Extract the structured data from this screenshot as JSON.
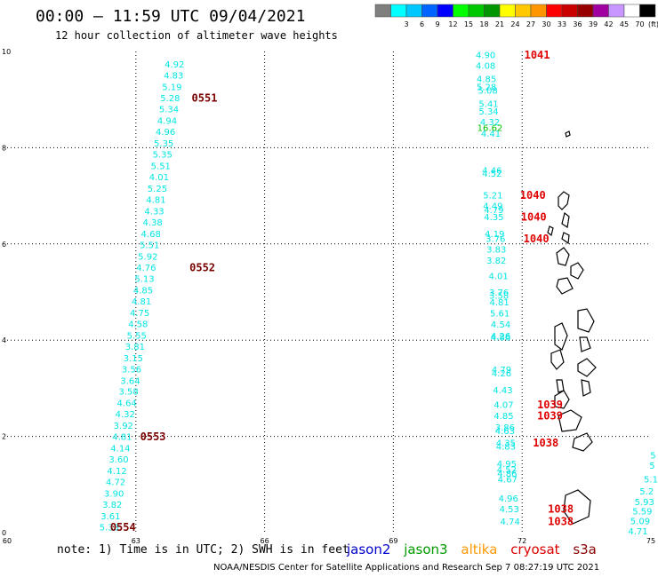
{
  "header": {
    "title": "00:00 – 11:59 UTC 09/04/2021",
    "subtitle": "12 hour collection of altimeter wave heights"
  },
  "legend": {
    "unit_label": "(ft)",
    "bins": [
      {
        "label": "",
        "color": "#7f7f7f"
      },
      {
        "label": "3",
        "color": "#00ffff"
      },
      {
        "label": "6",
        "color": "#00c8ff"
      },
      {
        "label": "9",
        "color": "#0064ff"
      },
      {
        "label": "12",
        "color": "#0000ff"
      },
      {
        "label": "15",
        "color": "#00ff00"
      },
      {
        "label": "18",
        "color": "#00c800"
      },
      {
        "label": "21",
        "color": "#009600"
      },
      {
        "label": "24",
        "color": "#ffff00"
      },
      {
        "label": "27",
        "color": "#ffc800"
      },
      {
        "label": "30",
        "color": "#ff9600"
      },
      {
        "label": "33",
        "color": "#ff0000"
      },
      {
        "label": "36",
        "color": "#c80000"
      },
      {
        "label": "39",
        "color": "#960000"
      },
      {
        "label": "42",
        "color": "#a000a0"
      },
      {
        "label": "45",
        "color": "#c896ff"
      },
      {
        "label": "70",
        "color": "#ffffff"
      },
      {
        "label": "",
        "color": "#000000"
      }
    ]
  },
  "chart_data": {
    "type": "scatter",
    "title": "00:00 – 11:59 UTC 09/04/2021",
    "subtitle": "12 hour collection of altimeter wave heights",
    "xlim": [
      60,
      75
    ],
    "ylim": [
      0,
      10
    ],
    "xticks": [
      "60",
      "63",
      "66",
      "69",
      "72",
      "75"
    ],
    "yticks": [
      "0",
      "2",
      "4",
      "6",
      "8",
      "10"
    ],
    "grid": true,
    "tracks": [
      {
        "name": "cryosat",
        "color": "#00e5e5",
        "points": [
          {
            "x": 63.9,
            "y": 9.72,
            "v": "4.92"
          },
          {
            "x": 63.88,
            "y": 9.49,
            "v": "4.83"
          },
          {
            "x": 63.84,
            "y": 9.25,
            "v": "5.19"
          },
          {
            "x": 63.8,
            "y": 9.02,
            "v": "5.28"
          },
          {
            "x": 63.77,
            "y": 8.79,
            "v": "5.34"
          },
          {
            "x": 63.73,
            "y": 8.55,
            "v": "4.94"
          },
          {
            "x": 63.69,
            "y": 8.32,
            "v": "4.96"
          },
          {
            "x": 63.65,
            "y": 8.08,
            "v": "5.35"
          },
          {
            "x": 63.62,
            "y": 7.85,
            "v": "5.35"
          },
          {
            "x": 63.58,
            "y": 7.61,
            "v": "5.51"
          },
          {
            "x": 63.54,
            "y": 7.38,
            "v": "4.01"
          },
          {
            "x": 63.5,
            "y": 7.14,
            "v": "5.25"
          },
          {
            "x": 63.47,
            "y": 6.91,
            "v": "4.81"
          },
          {
            "x": 63.43,
            "y": 6.67,
            "v": "4.33"
          },
          {
            "x": 63.39,
            "y": 6.44,
            "v": "4.38"
          },
          {
            "x": 63.35,
            "y": 6.2,
            "v": "4.68"
          },
          {
            "x": 63.32,
            "y": 5.97,
            "v": "5.51"
          },
          {
            "x": 63.28,
            "y": 5.73,
            "v": "5.92"
          },
          {
            "x": 63.24,
            "y": 5.5,
            "v": "4.76"
          },
          {
            "x": 63.2,
            "y": 5.27,
            "v": "5.13"
          },
          {
            "x": 63.17,
            "y": 5.03,
            "v": "4.85"
          },
          {
            "x": 63.13,
            "y": 4.8,
            "v": "4.81"
          },
          {
            "x": 63.09,
            "y": 4.56,
            "v": "4.75"
          },
          {
            "x": 63.05,
            "y": 4.33,
            "v": "4.58"
          },
          {
            "x": 63.02,
            "y": 4.09,
            "v": "5.55"
          },
          {
            "x": 62.98,
            "y": 3.86,
            "v": "3.81"
          },
          {
            "x": 62.94,
            "y": 3.62,
            "v": "3.15"
          },
          {
            "x": 62.9,
            "y": 3.39,
            "v": "3.56"
          },
          {
            "x": 62.87,
            "y": 3.15,
            "v": "3.64"
          },
          {
            "x": 62.83,
            "y": 2.92,
            "v": "3.58"
          },
          {
            "x": 62.79,
            "y": 2.68,
            "v": "4.64"
          },
          {
            "x": 62.75,
            "y": 2.45,
            "v": "4.32"
          },
          {
            "x": 62.71,
            "y": 2.21,
            "v": "3.92"
          },
          {
            "x": 62.68,
            "y": 1.98,
            "v": "4.81"
          },
          {
            "x": 62.64,
            "y": 1.74,
            "v": "4.14"
          },
          {
            "x": 62.6,
            "y": 1.51,
            "v": "3.60"
          },
          {
            "x": 62.56,
            "y": 1.27,
            "v": "4.12"
          },
          {
            "x": 62.53,
            "y": 1.04,
            "v": "4.72"
          },
          {
            "x": 62.49,
            "y": 0.8,
            "v": "3.90"
          },
          {
            "x": 62.45,
            "y": 0.57,
            "v": "3.82"
          },
          {
            "x": 62.41,
            "y": 0.33,
            "v": "3.61"
          },
          {
            "x": 62.38,
            "y": 0.1,
            "v": "5.33"
          }
        ],
        "pass_labels": [
          {
            "x": 64.3,
            "y": 9.02,
            "v": "0551"
          },
          {
            "x": 64.25,
            "y": 5.5,
            "v": "0552"
          },
          {
            "x": 63.1,
            "y": 1.98,
            "v": "0553"
          },
          {
            "x": 62.4,
            "y": 0.1,
            "v": "0554"
          }
        ]
      },
      {
        "name": "cryosat",
        "color": "#00e5e5",
        "points": [
          {
            "x": 71.15,
            "y": 9.92,
            "v": "4.90"
          },
          {
            "x": 71.15,
            "y": 9.7,
            "v": "4.08"
          },
          {
            "x": 71.17,
            "y": 9.42,
            "v": "4.85"
          },
          {
            "x": 71.17,
            "y": 9.25,
            "v": "5.28"
          },
          {
            "x": 71.2,
            "y": 9.18,
            "v": "5.08"
          },
          {
            "x": 71.22,
            "y": 8.9,
            "v": "5.41"
          },
          {
            "x": 71.22,
            "y": 8.75,
            "v": "5.34"
          },
          {
            "x": 71.25,
            "y": 8.52,
            "v": "4.32"
          },
          {
            "x": 71.27,
            "y": 8.28,
            "v": "4.41"
          },
          {
            "x": 71.3,
            "y": 7.52,
            "v": "4.46"
          },
          {
            "x": 71.3,
            "y": 7.45,
            "v": "4.52"
          },
          {
            "x": 71.32,
            "y": 7.0,
            "v": "5.21"
          },
          {
            "x": 71.32,
            "y": 6.78,
            "v": "4.49"
          },
          {
            "x": 71.34,
            "y": 6.7,
            "v": "4.79"
          },
          {
            "x": 71.34,
            "y": 6.55,
            "v": "4.35"
          },
          {
            "x": 71.36,
            "y": 6.2,
            "v": "4.19"
          },
          {
            "x": 71.38,
            "y": 6.1,
            "v": "3.76"
          },
          {
            "x": 71.4,
            "y": 5.88,
            "v": "3.83"
          },
          {
            "x": 71.4,
            "y": 5.65,
            "v": "3.82"
          },
          {
            "x": 71.45,
            "y": 5.32,
            "v": "4.01"
          },
          {
            "x": 71.46,
            "y": 4.98,
            "v": "3.76"
          },
          {
            "x": 71.46,
            "y": 4.92,
            "v": "3.58"
          },
          {
            "x": 71.47,
            "y": 4.78,
            "v": "4.81"
          },
          {
            "x": 71.48,
            "y": 4.55,
            "v": "5.61"
          },
          {
            "x": 71.5,
            "y": 4.32,
            "v": "4.54"
          },
          {
            "x": 71.5,
            "y": 4.08,
            "v": "4.26"
          },
          {
            "x": 71.5,
            "y": 4.05,
            "v": "4.86"
          },
          {
            "x": 71.52,
            "y": 3.38,
            "v": "4.79"
          },
          {
            "x": 71.52,
            "y": 3.3,
            "v": "4.26"
          },
          {
            "x": 71.55,
            "y": 2.95,
            "v": "4.43"
          },
          {
            "x": 71.57,
            "y": 2.65,
            "v": "4.07"
          },
          {
            "x": 71.57,
            "y": 2.42,
            "v": "4.85"
          },
          {
            "x": 71.6,
            "y": 2.18,
            "v": "3.86"
          },
          {
            "x": 71.6,
            "y": 2.1,
            "v": "4.63"
          },
          {
            "x": 71.62,
            "y": 1.85,
            "v": "4.35"
          },
          {
            "x": 71.62,
            "y": 1.78,
            "v": "4.83"
          },
          {
            "x": 71.64,
            "y": 1.42,
            "v": "4.95"
          },
          {
            "x": 71.64,
            "y": 1.3,
            "v": "4.52"
          },
          {
            "x": 71.65,
            "y": 1.22,
            "v": "4.86"
          },
          {
            "x": 71.66,
            "y": 1.1,
            "v": "4.67"
          },
          {
            "x": 71.68,
            "y": 0.7,
            "v": "4.96"
          },
          {
            "x": 71.7,
            "y": 0.48,
            "v": "4.53"
          },
          {
            "x": 71.72,
            "y": 0.22,
            "v": "4.74"
          }
        ],
        "pass_labels": [
          {
            "x": 72.05,
            "y": 9.92,
            "v": "1041"
          },
          {
            "x": 71.95,
            "y": 7.0,
            "v": "1040"
          },
          {
            "x": 71.97,
            "y": 6.55,
            "v": "1040"
          },
          {
            "x": 72.03,
            "y": 6.1,
            "v": "1040"
          },
          {
            "x": 72.35,
            "y": 2.65,
            "v": "1039"
          },
          {
            "x": 72.35,
            "y": 2.42,
            "v": "1039"
          },
          {
            "x": 72.25,
            "y": 1.85,
            "v": "1038"
          },
          {
            "x": 72.6,
            "y": 0.48,
            "v": "1038"
          },
          {
            "x": 72.6,
            "y": 0.22,
            "v": "1038"
          }
        ]
      },
      {
        "name": "cryosat",
        "color": "#00c000",
        "points": [
          {
            "x": 71.25,
            "y": 8.4,
            "v": "16.62"
          }
        ],
        "pass_labels": []
      },
      {
        "name": "cryosat",
        "color": "#00e5e5",
        "points": [
          {
            "x": 75.05,
            "y": 1.6,
            "v": "5"
          },
          {
            "x": 75.03,
            "y": 1.38,
            "v": "5"
          },
          {
            "x": 75.0,
            "y": 1.1,
            "v": "5.1"
          },
          {
            "x": 74.9,
            "y": 0.85,
            "v": "5.2"
          },
          {
            "x": 74.85,
            "y": 0.63,
            "v": "5.93"
          },
          {
            "x": 74.8,
            "y": 0.43,
            "v": "5.59"
          },
          {
            "x": 74.75,
            "y": 0.23,
            "v": "5.09"
          },
          {
            "x": 74.7,
            "y": 0.02,
            "v": "4.71"
          }
        ],
        "pass_labels": []
      }
    ]
  },
  "footnote": {
    "note": "note: 1) Time is in UTC; 2) SWH is in feet",
    "missions": [
      {
        "label": "jason2",
        "color": "#0000cc"
      },
      {
        "label": "jason3",
        "color": "#009900"
      },
      {
        "label": "altika",
        "color": "#ff9900"
      },
      {
        "label": "cryosat",
        "color": "#dd0000"
      },
      {
        "label": "s3a",
        "color": "#880000"
      }
    ],
    "credit": "NOAA/NESDIS Center for Satellite Applications and Research   Sep  7 08:27:19 UTC 2021"
  }
}
